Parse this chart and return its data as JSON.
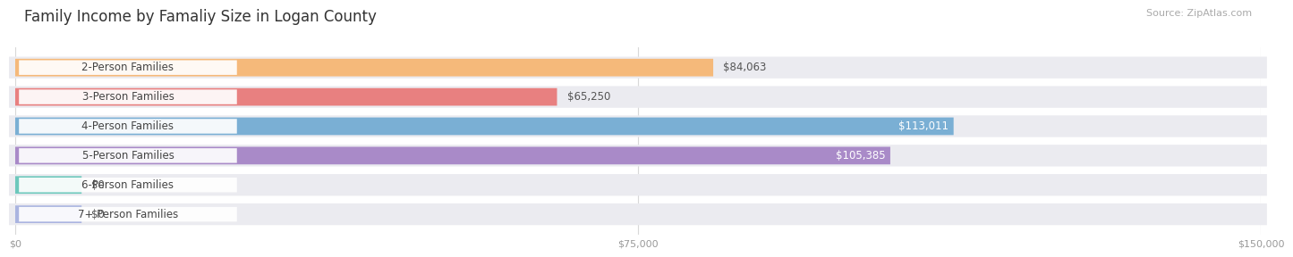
{
  "title": "Family Income by Famaliy Size in Logan County",
  "source": "Source: ZipAtlas.com",
  "categories": [
    "2-Person Families",
    "3-Person Families",
    "4-Person Families",
    "5-Person Families",
    "6-Person Families",
    "7+ Person Families"
  ],
  "values": [
    84063,
    65250,
    113011,
    105385,
    0,
    0
  ],
  "small_bar_val": 8000,
  "bar_colors": [
    "#f5b97a",
    "#e88080",
    "#7aafd4",
    "#a98ac8",
    "#6dc8bc",
    "#aab4e0"
  ],
  "value_labels": [
    "$84,063",
    "$65,250",
    "$113,011",
    "$105,385",
    "$0",
    "$0"
  ],
  "value_inside": [
    false,
    false,
    true,
    true,
    false,
    false
  ],
  "xlim": [
    0,
    150000
  ],
  "xticks": [
    0,
    75000,
    150000
  ],
  "xtick_labels": [
    "$0",
    "$75,000",
    "$150,000"
  ],
  "background_color": "#ffffff",
  "row_bg_color": "#ebebf0",
  "title_fontsize": 12,
  "source_fontsize": 8,
  "label_fontsize": 8.5,
  "value_fontsize": 8.5
}
